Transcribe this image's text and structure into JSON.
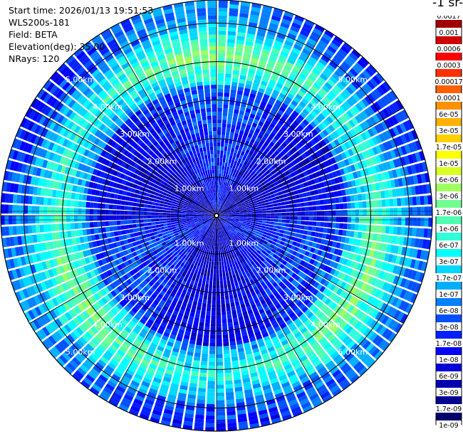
{
  "header": {
    "start_time": "Start time: 2026/01/13 19:51:53",
    "instrument": "WLS200s-181",
    "field": "Field: BETA",
    "elevation": "Elevation(deg): 35.00",
    "nrays": "NRays: 120"
  },
  "colorbar": {
    "unit_label": "-1 sr-",
    "labels": [
      "0.0017",
      "0.001",
      "0.0006",
      "0.0003",
      "0.00017",
      "0.0001",
      "6e-05",
      "3e-05",
      "1.7e-05",
      "1e-05",
      "6e-06",
      "3e-06",
      "1.7e-06",
      "1e-06",
      "6e-07",
      "3e-07",
      "1.7e-07",
      "1e-07",
      "6e-08",
      "3e-08",
      "1.7e-08",
      "1e-08",
      "6e-09",
      "3e-09",
      "1.7e-09",
      "1e-09"
    ],
    "colors": [
      "#a00000",
      "#d00000",
      "#ff0000",
      "#ff3000",
      "#ff6000",
      "#ff9000",
      "#ffb000",
      "#ffd000",
      "#ffff00",
      "#d8ff20",
      "#a0ff60",
      "#70ff90",
      "#50ffb0",
      "#30ffd8",
      "#00ffff",
      "#00d8ff",
      "#00b0ff",
      "#0080ff",
      "#0050ff",
      "#0020ff",
      "#0000ff",
      "#0000d8",
      "#0000b0",
      "#000090",
      "#00006a"
    ]
  },
  "chart_data": {
    "type": "heatmap",
    "projection": "polar-ppi",
    "nrays": 120,
    "range_km": [
      0,
      5.6
    ],
    "range_rings_km": [
      1,
      2,
      3,
      4,
      5
    ],
    "ring_labels": [
      "1.00km",
      "2.00km",
      "3.00km",
      "4.00km",
      "5.00km"
    ],
    "aerosol_ring_km": [
      3.4,
      4.9
    ],
    "field": "BETA",
    "elevation_deg": 35.0
  }
}
